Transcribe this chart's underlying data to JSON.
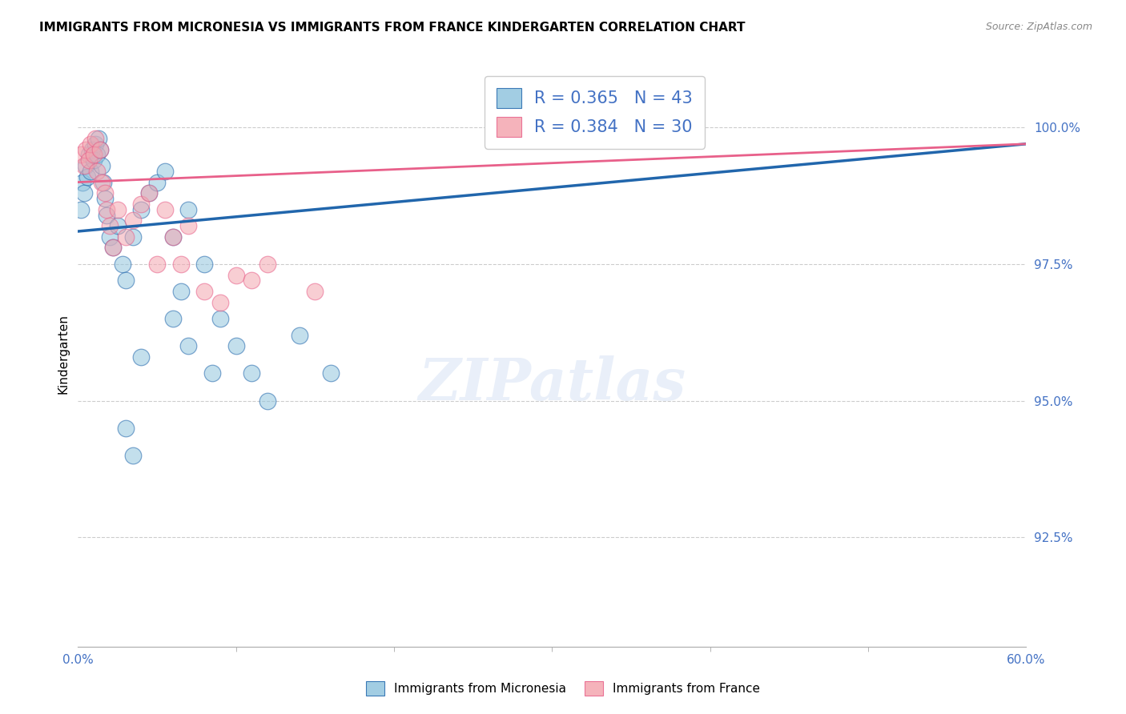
{
  "title": "IMMIGRANTS FROM MICRONESIA VS IMMIGRANTS FROM FRANCE KINDERGARTEN CORRELATION CHART",
  "source": "Source: ZipAtlas.com",
  "ylabel": "Kindergarten",
  "color_micronesia": "#92c5de",
  "color_france": "#f4a6b0",
  "color_trend_micronesia": "#2166ac",
  "color_trend_france": "#e8608a",
  "color_axis_labels": "#4472c4",
  "color_grid": "#cccccc",
  "xmin": 0.0,
  "xmax": 60.0,
  "ymin": 90.5,
  "ymax": 101.2,
  "micronesia_R": 0.365,
  "micronesia_N": 43,
  "france_R": 0.384,
  "france_N": 30,
  "micronesia_x": [
    0.2,
    0.3,
    0.4,
    0.5,
    0.6,
    0.7,
    0.8,
    0.9,
    1.0,
    1.1,
    1.2,
    1.3,
    1.4,
    1.5,
    1.6,
    1.7,
    1.8,
    2.0,
    2.2,
    2.5,
    2.8,
    3.0,
    3.5,
    4.0,
    4.5,
    5.0,
    5.5,
    6.0,
    6.5,
    7.0,
    8.0,
    9.0,
    10.0,
    11.0,
    12.0,
    14.0,
    16.0,
    3.0,
    3.5,
    4.0,
    6.0,
    7.0,
    8.5
  ],
  "micronesia_y": [
    98.5,
    99.0,
    98.8,
    99.3,
    99.1,
    99.5,
    99.2,
    99.6,
    99.4,
    99.7,
    99.5,
    99.8,
    99.6,
    99.3,
    99.0,
    98.7,
    98.4,
    98.0,
    97.8,
    98.2,
    97.5,
    97.2,
    98.0,
    98.5,
    98.8,
    99.0,
    99.2,
    98.0,
    97.0,
    98.5,
    97.5,
    96.5,
    96.0,
    95.5,
    95.0,
    96.2,
    95.5,
    94.5,
    94.0,
    95.8,
    96.5,
    96.0,
    95.5
  ],
  "france_x": [
    0.2,
    0.4,
    0.5,
    0.7,
    0.8,
    1.0,
    1.1,
    1.2,
    1.4,
    1.5,
    1.7,
    1.8,
    2.0,
    2.2,
    2.5,
    3.0,
    3.5,
    4.0,
    5.0,
    6.0,
    7.0,
    8.0,
    10.0,
    12.0,
    4.5,
    5.5,
    6.5,
    9.0,
    11.0,
    15.0
  ],
  "france_y": [
    99.5,
    99.3,
    99.6,
    99.4,
    99.7,
    99.5,
    99.8,
    99.2,
    99.6,
    99.0,
    98.8,
    98.5,
    98.2,
    97.8,
    98.5,
    98.0,
    98.3,
    98.6,
    97.5,
    98.0,
    98.2,
    97.0,
    97.3,
    97.5,
    98.8,
    98.5,
    97.5,
    96.8,
    97.2,
    97.0
  ]
}
